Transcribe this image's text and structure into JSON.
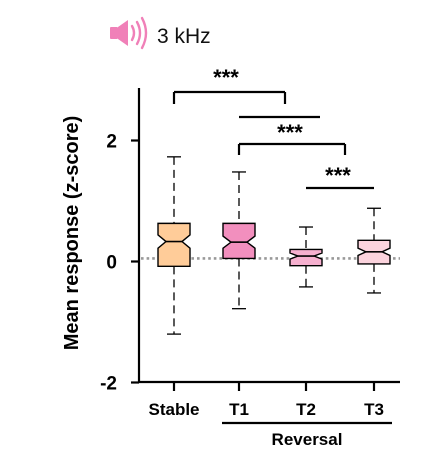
{
  "header": {
    "speaker_icon": "speaker-icon",
    "stimulus_label": "3 kHz"
  },
  "chart_data": {
    "type": "box",
    "ylabel": "Mean response (z-score)",
    "ylim": [
      -2,
      2.8
    ],
    "yticks": [
      {
        "value": 2,
        "label": "2"
      },
      {
        "value": 0,
        "label": "0"
      },
      {
        "value": -2,
        "label": "-2"
      }
    ],
    "categories": [
      "Stable",
      "T1",
      "T2",
      "T3"
    ],
    "group_label": {
      "label": "Reversal",
      "spans": [
        "T1",
        "T2",
        "T3"
      ]
    },
    "boxes": [
      {
        "category": "Stable",
        "whisker_low": -1.2,
        "q1": -0.08,
        "median": 0.33,
        "q3": 0.63,
        "whisker_high": 1.73,
        "notch_low": 0.22,
        "notch_high": 0.44,
        "color": "#FFCC99"
      },
      {
        "category": "T1",
        "whisker_low": -0.78,
        "q1": 0.05,
        "median": 0.32,
        "q3": 0.63,
        "whisker_high": 1.48,
        "notch_low": 0.22,
        "notch_high": 0.42,
        "color": "#F28FBE"
      },
      {
        "category": "T2",
        "whisker_low": -0.42,
        "q1": -0.07,
        "median": 0.09,
        "q3": 0.2,
        "whisker_high": 0.57,
        "notch_low": 0.04,
        "notch_high": 0.14,
        "color": "#F6B0CF"
      },
      {
        "category": "T3",
        "whisker_low": -0.52,
        "q1": -0.04,
        "median": 0.16,
        "q3": 0.35,
        "whisker_high": 0.88,
        "notch_low": 0.1,
        "notch_high": 0.22,
        "color": "#FBD3DD"
      }
    ],
    "reference_line": {
      "y": 0.05,
      "style": "dotted",
      "color": "#999999"
    },
    "significance": [
      {
        "from": "Stable",
        "to": "T2",
        "label": "***"
      },
      {
        "from": "T1",
        "to": "T3",
        "label": "***"
      },
      {
        "from": "T1",
        "to": "T3",
        "label": "***"
      },
      {
        "from": "T2",
        "to": "T3",
        "label": "***"
      }
    ],
    "colors": {
      "speaker": "#F080B8",
      "stable": "#FFCC99",
      "t1": "#F28FBE",
      "t2": "#F6B0CF",
      "t3": "#FBD3DD"
    }
  }
}
